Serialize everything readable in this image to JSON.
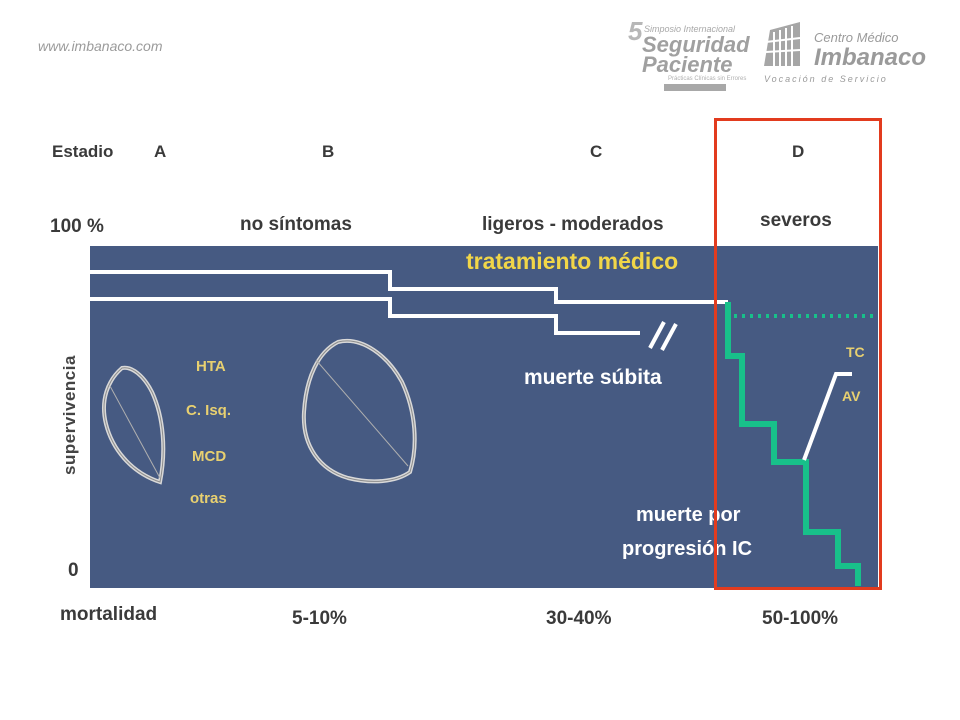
{
  "header": {
    "url": "www.imbanaco.com",
    "symposium_logo": {
      "number": "5",
      "line1": "Simposio Internacional",
      "line2": "Seguridad",
      "line3": "Paciente",
      "line4": "Prácticas Clínicas sin Errores"
    },
    "imbanaco_logo": {
      "name1": "Centro Médico",
      "name2": "Imbanaco",
      "tagline": "Vocación de Servicio"
    }
  },
  "stages": {
    "label": "Estadio",
    "a": "A",
    "b": "B",
    "c": "C",
    "d": "D"
  },
  "symptoms": {
    "b": "no síntomas",
    "c": "ligeros - moderados",
    "d": "severos"
  },
  "y_axis": {
    "top": "100 %",
    "bottom": "0",
    "label": "supervivencia"
  },
  "inside": {
    "risk_factors": [
      "HTA",
      "C. Isq.",
      "MCD",
      "otras"
    ],
    "treatment": "tratamiento médico",
    "sudden_death": "muerte súbita",
    "progression_death_1": "muerte por",
    "progression_death_2": "progresión IC",
    "tc": "TC",
    "av": "AV"
  },
  "mortality": {
    "label": "mortalidad",
    "b": "5-10%",
    "c": "30-40%",
    "d": "50-100%"
  },
  "colors": {
    "panel": "#465a82",
    "survival_line": "#ffffff",
    "progression_line": "#18c08a",
    "highlight_box": "#e23b1e",
    "treatment_text": "#f1d648",
    "risk_text": "#e8d070"
  }
}
